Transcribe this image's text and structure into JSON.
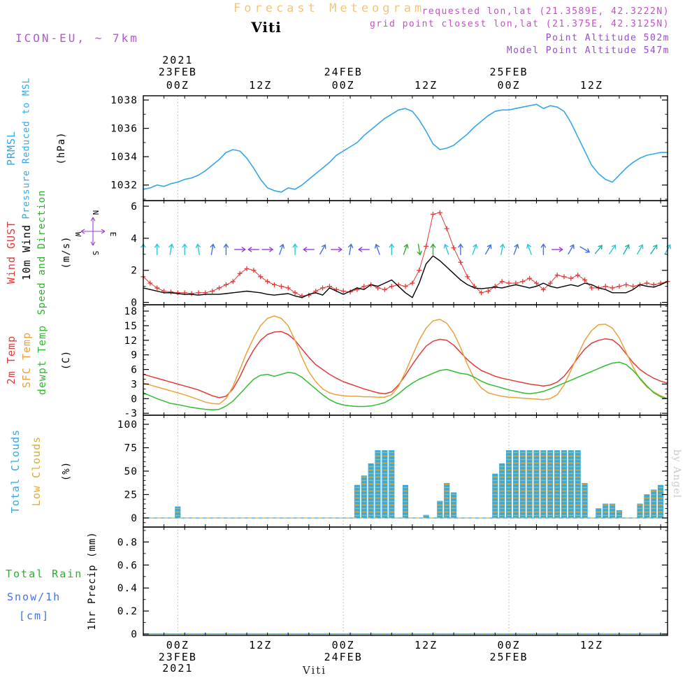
{
  "header": {
    "title": "Forecast Meteogram",
    "station": "Viti",
    "model": "ICON-EU, ~ 7km",
    "requested": "requested lon,lat (21.3589E, 42.3222N)",
    "grid_point": "grid point closest lon,lat (21.375E, 42.3125N)",
    "point_altitude": "Point Altitude 502m",
    "model_point_altitude": "Model Point Altitude 547m"
  },
  "footer": {
    "station": "Viti"
  },
  "watermark": "by Angel",
  "colors": {
    "pressure": "#33a7e8",
    "gust": "#e23b3b",
    "wind10m": "#000000",
    "direction": "#2fae2f",
    "temp_2m": "#e23b3b",
    "temp_sfc": "#e8a33c",
    "temp_dewpt": "#2fbe2f",
    "clouds_total": "#35aade",
    "clouds_low": "#ddab3c",
    "rain": "#2fae2f",
    "snow": "#4671e0",
    "compass": "#9b3fd6",
    "header_magenta": "#c74ec7",
    "header_purple": "#9a4ad2",
    "model_label": "#b455d8",
    "title": "#f4c47c",
    "watermark": "#c9c9c9",
    "grid": "#b5b5b5",
    "arrow_colors": {
      "cyan": "#2ec8d8",
      "blue": "#4671e0",
      "purple": "#9b3fd6",
      "green": "#2fae2f",
      "teal": "#1fb2a6"
    }
  },
  "panel_labels": {
    "pressure": {
      "l1": "PRMSL",
      "l2": "Pressure Reduced to MSL",
      "unit": "(hPa)"
    },
    "wind": {
      "l1": "Wind GUST",
      "l2": "10m Wind",
      "l3": "Speed and Direction",
      "unit": "(m/s)",
      "compass": {
        "n": "N",
        "e": "E",
        "s": "S",
        "w": "W"
      }
    },
    "temp": {
      "l1": "2m Temp",
      "l2": "SFC Temp",
      "l3": "dewpt Temp",
      "unit": "(C)"
    },
    "clouds": {
      "l1": "Total Clouds",
      "l2": "Low Clouds",
      "unit": "(%)"
    },
    "precip": {
      "l1": "Total   Rain",
      "l2": "Snow/1h",
      "l3": "[cm]",
      "vert": "1hr Precip  (mm)"
    }
  },
  "axis": {
    "hours_total": 76,
    "x_minor_step": 3,
    "grid_hours": [
      5,
      29,
      53
    ],
    "time_ticks": [
      {
        "h": 5,
        "label": "00Z"
      },
      {
        "h": 17,
        "label": "12Z"
      },
      {
        "h": 29,
        "label": "00Z"
      },
      {
        "h": 41,
        "label": "12Z"
      },
      {
        "h": 53,
        "label": "00Z"
      },
      {
        "h": 65,
        "label": "12Z"
      }
    ],
    "dates_top": [
      {
        "h": 5,
        "lines": [
          "2021",
          "23FEB"
        ]
      },
      {
        "h": 29,
        "lines": [
          "24FEB"
        ]
      },
      {
        "h": 53,
        "lines": [
          "25FEB"
        ]
      }
    ],
    "dates_bottom": [
      {
        "h": 5,
        "lines": [
          "23FEB",
          "2021"
        ]
      },
      {
        "h": 29,
        "lines": [
          "24FEB"
        ]
      },
      {
        "h": 53,
        "lines": [
          "25FEB"
        ]
      }
    ]
  },
  "chart_data": [
    {
      "id": "pressure",
      "type": "line",
      "ylabel": "(hPa)",
      "ylim": [
        1030.9,
        1038.3
      ],
      "yticks": [
        1032,
        1034,
        1036,
        1038
      ],
      "y_minor": 1,
      "series": [
        {
          "name": "PRMSL Pressure Reduced to MSL",
          "color": "#33a7e8",
          "hours_step": 1,
          "values": [
            1031.7,
            1031.8,
            1032,
            1031.9,
            1032.1,
            1032.2,
            1032.4,
            1032.5,
            1032.7,
            1033,
            1033.4,
            1033.8,
            1034.3,
            1034.5,
            1034.4,
            1033.9,
            1033.2,
            1032.4,
            1031.8,
            1031.6,
            1031.5,
            1031.8,
            1031.7,
            1032,
            1032.4,
            1032.8,
            1033.2,
            1033.6,
            1034.1,
            1034.4,
            1034.7,
            1035,
            1035.5,
            1035.9,
            1036.3,
            1036.7,
            1037,
            1037.3,
            1037.4,
            1037.2,
            1036.6,
            1035.8,
            1034.9,
            1034.5,
            1034.6,
            1034.8,
            1035.2,
            1035.6,
            1036.1,
            1036.5,
            1036.9,
            1037.2,
            1037.3,
            1037.3,
            1037.4,
            1037.5,
            1037.6,
            1037.7,
            1037.4,
            1037.6,
            1037.5,
            1037.2,
            1036.4,
            1035.4,
            1034.4,
            1033.4,
            1032.8,
            1032.4,
            1032.2,
            1032.7,
            1033.2,
            1033.6,
            1033.9,
            1034.1,
            1034.2,
            1034.3,
            1034.3
          ]
        }
      ]
    },
    {
      "id": "wind",
      "type": "line",
      "ylabel": "(m/s)",
      "ylim": [
        -0.15,
        6.35
      ],
      "yticks": [
        0,
        2,
        4,
        6
      ],
      "y_minor": 1,
      "series": [
        {
          "name": "Wind GUST",
          "color": "#e23b3b",
          "marker": "+",
          "hours_step": 1,
          "values": [
            1.6,
            1.2,
            0.9,
            0.7,
            0.65,
            0.6,
            0.6,
            0.55,
            0.6,
            0.6,
            0.7,
            0.9,
            1.1,
            1.3,
            1.8,
            2.1,
            2,
            1.6,
            1.3,
            1.1,
            1,
            0.9,
            0.6,
            0.4,
            0.45,
            0.7,
            0.9,
            1,
            0.8,
            0.7,
            0.65,
            0.8,
            1,
            1.1,
            0.9,
            0.8,
            1,
            1.1,
            1,
            1.2,
            2,
            3.5,
            5.5,
            5.6,
            4.6,
            3.4,
            2.5,
            1.6,
            1,
            0.6,
            0.7,
            1,
            1.3,
            1.2,
            1.2,
            1.3,
            1.5,
            1.2,
            0.8,
            1.2,
            1.7,
            1.6,
            1.5,
            1.7,
            1.4,
            0.9,
            0.9,
            1,
            0.9,
            1,
            1.1,
            1,
            1.1,
            1.2,
            1.1,
            1.2,
            1.3
          ]
        },
        {
          "name": "10m Wind",
          "color": "#000000",
          "hours_step": 1,
          "values": [
            0.9,
            0.8,
            0.7,
            0.6,
            0.6,
            0.55,
            0.5,
            0.5,
            0.45,
            0.5,
            0.5,
            0.5,
            0.55,
            0.6,
            0.65,
            0.7,
            0.65,
            0.6,
            0.5,
            0.45,
            0.5,
            0.55,
            0.4,
            0.3,
            0.5,
            0.6,
            0.45,
            0.9,
            0.7,
            0.5,
            0.7,
            0.9,
            0.8,
            1.1,
            1,
            1.2,
            1.4,
            1,
            0.6,
            0.3,
            1.2,
            2.4,
            2.9,
            2.6,
            2.2,
            1.8,
            1.4,
            1.1,
            0.9,
            0.85,
            0.9,
            0.95,
            0.9,
            1,
            1.1,
            1,
            0.9,
            1,
            1.2,
            1,
            0.9,
            1,
            1.1,
            1,
            1.2,
            1.1,
            0.9,
            0.8,
            0.6,
            0.6,
            0.6,
            0.8,
            1.1,
            1,
            0.95,
            1.1,
            1.3
          ]
        }
      ],
      "arrow_y": 3.3,
      "arrows": [
        {
          "h": 0,
          "d": 0,
          "c": "cyan"
        },
        {
          "h": 2,
          "d": 0,
          "c": "cyan"
        },
        {
          "h": 4,
          "d": 10,
          "c": "cyan"
        },
        {
          "h": 6,
          "d": 0,
          "c": "cyan"
        },
        {
          "h": 8,
          "d": 350,
          "c": "cyan"
        },
        {
          "h": 10,
          "d": 10,
          "c": "blue"
        },
        {
          "h": 12,
          "d": 0,
          "c": "blue"
        },
        {
          "h": 14,
          "d": 90,
          "c": "purple"
        },
        {
          "h": 16,
          "d": 270,
          "c": "purple"
        },
        {
          "h": 18,
          "d": 90,
          "c": "purple"
        },
        {
          "h": 20,
          "d": 20,
          "c": "blue"
        },
        {
          "h": 22,
          "d": 0,
          "c": "cyan"
        },
        {
          "h": 24,
          "d": 270,
          "c": "purple"
        },
        {
          "h": 26,
          "d": 30,
          "c": "blue"
        },
        {
          "h": 28,
          "d": 90,
          "c": "purple"
        },
        {
          "h": 30,
          "d": 10,
          "c": "blue"
        },
        {
          "h": 32,
          "d": 270,
          "c": "purple"
        },
        {
          "h": 34,
          "d": 340,
          "c": "blue"
        },
        {
          "h": 36,
          "d": 0,
          "c": "cyan"
        },
        {
          "h": 38,
          "d": 20,
          "c": "green"
        },
        {
          "h": 40,
          "d": 170,
          "c": "green"
        },
        {
          "h": 42,
          "d": 0,
          "c": "green"
        },
        {
          "h": 44,
          "d": 340,
          "c": "cyan"
        },
        {
          "h": 46,
          "d": 0,
          "c": "blue"
        },
        {
          "h": 48,
          "d": 20,
          "c": "cyan"
        },
        {
          "h": 50,
          "d": 30,
          "c": "blue"
        },
        {
          "h": 52,
          "d": 10,
          "c": "cyan"
        },
        {
          "h": 54,
          "d": 20,
          "c": "blue"
        },
        {
          "h": 56,
          "d": 340,
          "c": "cyan"
        },
        {
          "h": 58,
          "d": 0,
          "c": "blue"
        },
        {
          "h": 60,
          "d": 90,
          "c": "purple"
        },
        {
          "h": 62,
          "d": 30,
          "c": "blue"
        },
        {
          "h": 64,
          "d": 120,
          "c": "blue"
        },
        {
          "h": 66,
          "d": 40,
          "c": "teal"
        },
        {
          "h": 68,
          "d": 35,
          "c": "cyan"
        },
        {
          "h": 70,
          "d": 30,
          "c": "teal"
        },
        {
          "h": 72,
          "d": 30,
          "c": "cyan"
        },
        {
          "h": 74,
          "d": 35,
          "c": "teal"
        },
        {
          "h": 76,
          "d": 30,
          "c": "cyan"
        }
      ]
    },
    {
      "id": "temp",
      "type": "line",
      "ylabel": "(C)",
      "ylim": [
        -3.4,
        19.3
      ],
      "yticks": [
        -3,
        0,
        3,
        6,
        9,
        12,
        15,
        18
      ],
      "y_minor": 1,
      "series": [
        {
          "name": "2m Temp",
          "color": "#e23b3b",
          "hours_step": 1,
          "values": [
            5,
            4.6,
            4.2,
            3.8,
            3.4,
            3,
            2.6,
            2.2,
            1.8,
            1.2,
            0.6,
            0.2,
            0.5,
            2,
            4.5,
            7.5,
            10,
            12,
            13.2,
            13.7,
            13.8,
            13.2,
            12,
            10.2,
            8.5,
            7,
            6,
            5,
            4.2,
            3.5,
            3,
            2.5,
            2,
            1.6,
            1.2,
            1,
            1.4,
            2.8,
            4.8,
            7,
            9,
            10.8,
            11.8,
            12.2,
            12,
            11,
            9.5,
            8,
            6.8,
            5.8,
            5.2,
            4.6,
            4.2,
            3.9,
            3.6,
            3.3,
            3,
            2.8,
            2.6,
            2.8,
            3.4,
            4.6,
            6.4,
            8.4,
            10.2,
            11.4,
            12,
            12.3,
            12.1,
            11,
            9.2,
            7.4,
            6,
            5,
            4.2,
            3.6,
            3.2
          ]
        },
        {
          "name": "SFC Temp",
          "color": "#e8a33c",
          "hours_step": 1,
          "values": [
            3.2,
            2.8,
            2.4,
            2,
            1.6,
            1.2,
            0.8,
            0.3,
            -0.2,
            -0.7,
            -1,
            -1.1,
            0,
            2.5,
            6,
            9.5,
            12.5,
            15,
            16.5,
            17,
            16.5,
            15,
            12,
            8.5,
            5.5,
            3.5,
            2,
            1.2,
            0.8,
            0.6,
            0.5,
            0.5,
            0.4,
            0.4,
            0.3,
            0.3,
            0.8,
            2.5,
            5.5,
            8.8,
            12,
            14.5,
            16,
            16.3,
            15.5,
            13.5,
            10.5,
            7,
            4,
            2.2,
            1.2,
            0.8,
            0.5,
            0.3,
            0.2,
            0.1,
            0,
            -0.1,
            -0.2,
            0,
            0.8,
            2.8,
            5.8,
            9,
            12,
            14,
            15.2,
            15.3,
            14.5,
            12.5,
            9.5,
            6.5,
            4,
            2.4,
            1.4,
            0.6,
            0
          ]
        },
        {
          "name": "dewpt Temp",
          "color": "#2fbe2f",
          "hours_step": 1,
          "values": [
            1.2,
            0.6,
            0,
            -0.5,
            -1,
            -1.2,
            -1.5,
            -1.8,
            -2,
            -2.2,
            -2.3,
            -2.2,
            -1.5,
            -0.5,
            1,
            2.5,
            4,
            4.8,
            5,
            4.6,
            5,
            5.4,
            5.2,
            4.4,
            3.2,
            2,
            0.8,
            -0.2,
            -0.9,
            -1.3,
            -1.5,
            -1.6,
            -1.6,
            -1.5,
            -1.2,
            -0.8,
            0,
            1,
            2.2,
            3.2,
            4,
            4.6,
            5.2,
            5.8,
            6,
            5.6,
            5.2,
            5,
            4.4,
            3.6,
            3,
            2.6,
            2.2,
            1.8,
            1.5,
            1.2,
            1,
            1.2,
            1.5,
            2,
            2.6,
            3.2,
            3.8,
            4.4,
            5,
            5.6,
            6.2,
            6.8,
            7.3,
            7.5,
            7,
            5.8,
            4.2,
            2.6,
            1.2,
            0.4,
            0
          ]
        }
      ]
    },
    {
      "id": "clouds",
      "type": "bar",
      "ylabel": "(%)",
      "ylim": [
        -9.7,
        109.7
      ],
      "yticks": [
        0,
        25,
        50,
        75,
        100
      ],
      "y_minor": 5,
      "series_names": [
        "Total Clouds",
        "Low Clouds"
      ],
      "bars": [
        {
          "h": 5,
          "total": 12,
          "low": 12
        },
        {
          "h": 31,
          "total": 35,
          "low": 35
        },
        {
          "h": 32,
          "total": 45,
          "low": 45
        },
        {
          "h": 33,
          "total": 58,
          "low": 58
        },
        {
          "h": 34,
          "total": 72,
          "low": 72
        },
        {
          "h": 35,
          "total": 72,
          "low": 72
        },
        {
          "h": 36,
          "total": 72,
          "low": 72
        },
        {
          "h": 38,
          "total": 35,
          "low": 35
        },
        {
          "h": 41,
          "total": 3,
          "low": 3
        },
        {
          "h": 43,
          "total": 18,
          "low": 18
        },
        {
          "h": 44,
          "total": 37,
          "low": 37
        },
        {
          "h": 45,
          "total": 27,
          "low": 27
        },
        {
          "h": 51,
          "total": 47,
          "low": 47
        },
        {
          "h": 52,
          "total": 58,
          "low": 58
        },
        {
          "h": 53,
          "total": 72,
          "low": 72
        },
        {
          "h": 54,
          "total": 72,
          "low": 72
        },
        {
          "h": 55,
          "total": 72,
          "low": 72
        },
        {
          "h": 56,
          "total": 72,
          "low": 72
        },
        {
          "h": 57,
          "total": 72,
          "low": 72
        },
        {
          "h": 58,
          "total": 72,
          "low": 72
        },
        {
          "h": 59,
          "total": 72,
          "low": 72
        },
        {
          "h": 60,
          "total": 72,
          "low": 72
        },
        {
          "h": 61,
          "total": 72,
          "low": 72
        },
        {
          "h": 62,
          "total": 72,
          "low": 72
        },
        {
          "h": 63,
          "total": 72,
          "low": 72
        },
        {
          "h": 64,
          "total": 37,
          "low": 37
        },
        {
          "h": 66,
          "total": 10,
          "low": 10
        },
        {
          "h": 67,
          "total": 15,
          "low": 15
        },
        {
          "h": 68,
          "total": 15,
          "low": 15
        },
        {
          "h": 69,
          "total": 8,
          "low": 8
        },
        {
          "h": 72,
          "total": 15,
          "low": 15
        },
        {
          "h": 73,
          "total": 25,
          "low": 25
        },
        {
          "h": 74,
          "total": 30,
          "low": 30
        },
        {
          "h": 75,
          "total": 35,
          "low": 35
        }
      ]
    },
    {
      "id": "precip",
      "type": "line",
      "ylabel": "1hr Precip  (mm)",
      "ylim": [
        -0.012,
        0.93
      ],
      "yticks": [
        0,
        0.2,
        0.4,
        0.6,
        0.8
      ],
      "y_minor": 0.1,
      "series": [
        {
          "name": "Total Rain (1hr)",
          "color": "#2fae2f",
          "constant": 0
        },
        {
          "name": "Snow/1h [cm]",
          "color": "#4671e0",
          "constant": 0
        }
      ]
    }
  ]
}
